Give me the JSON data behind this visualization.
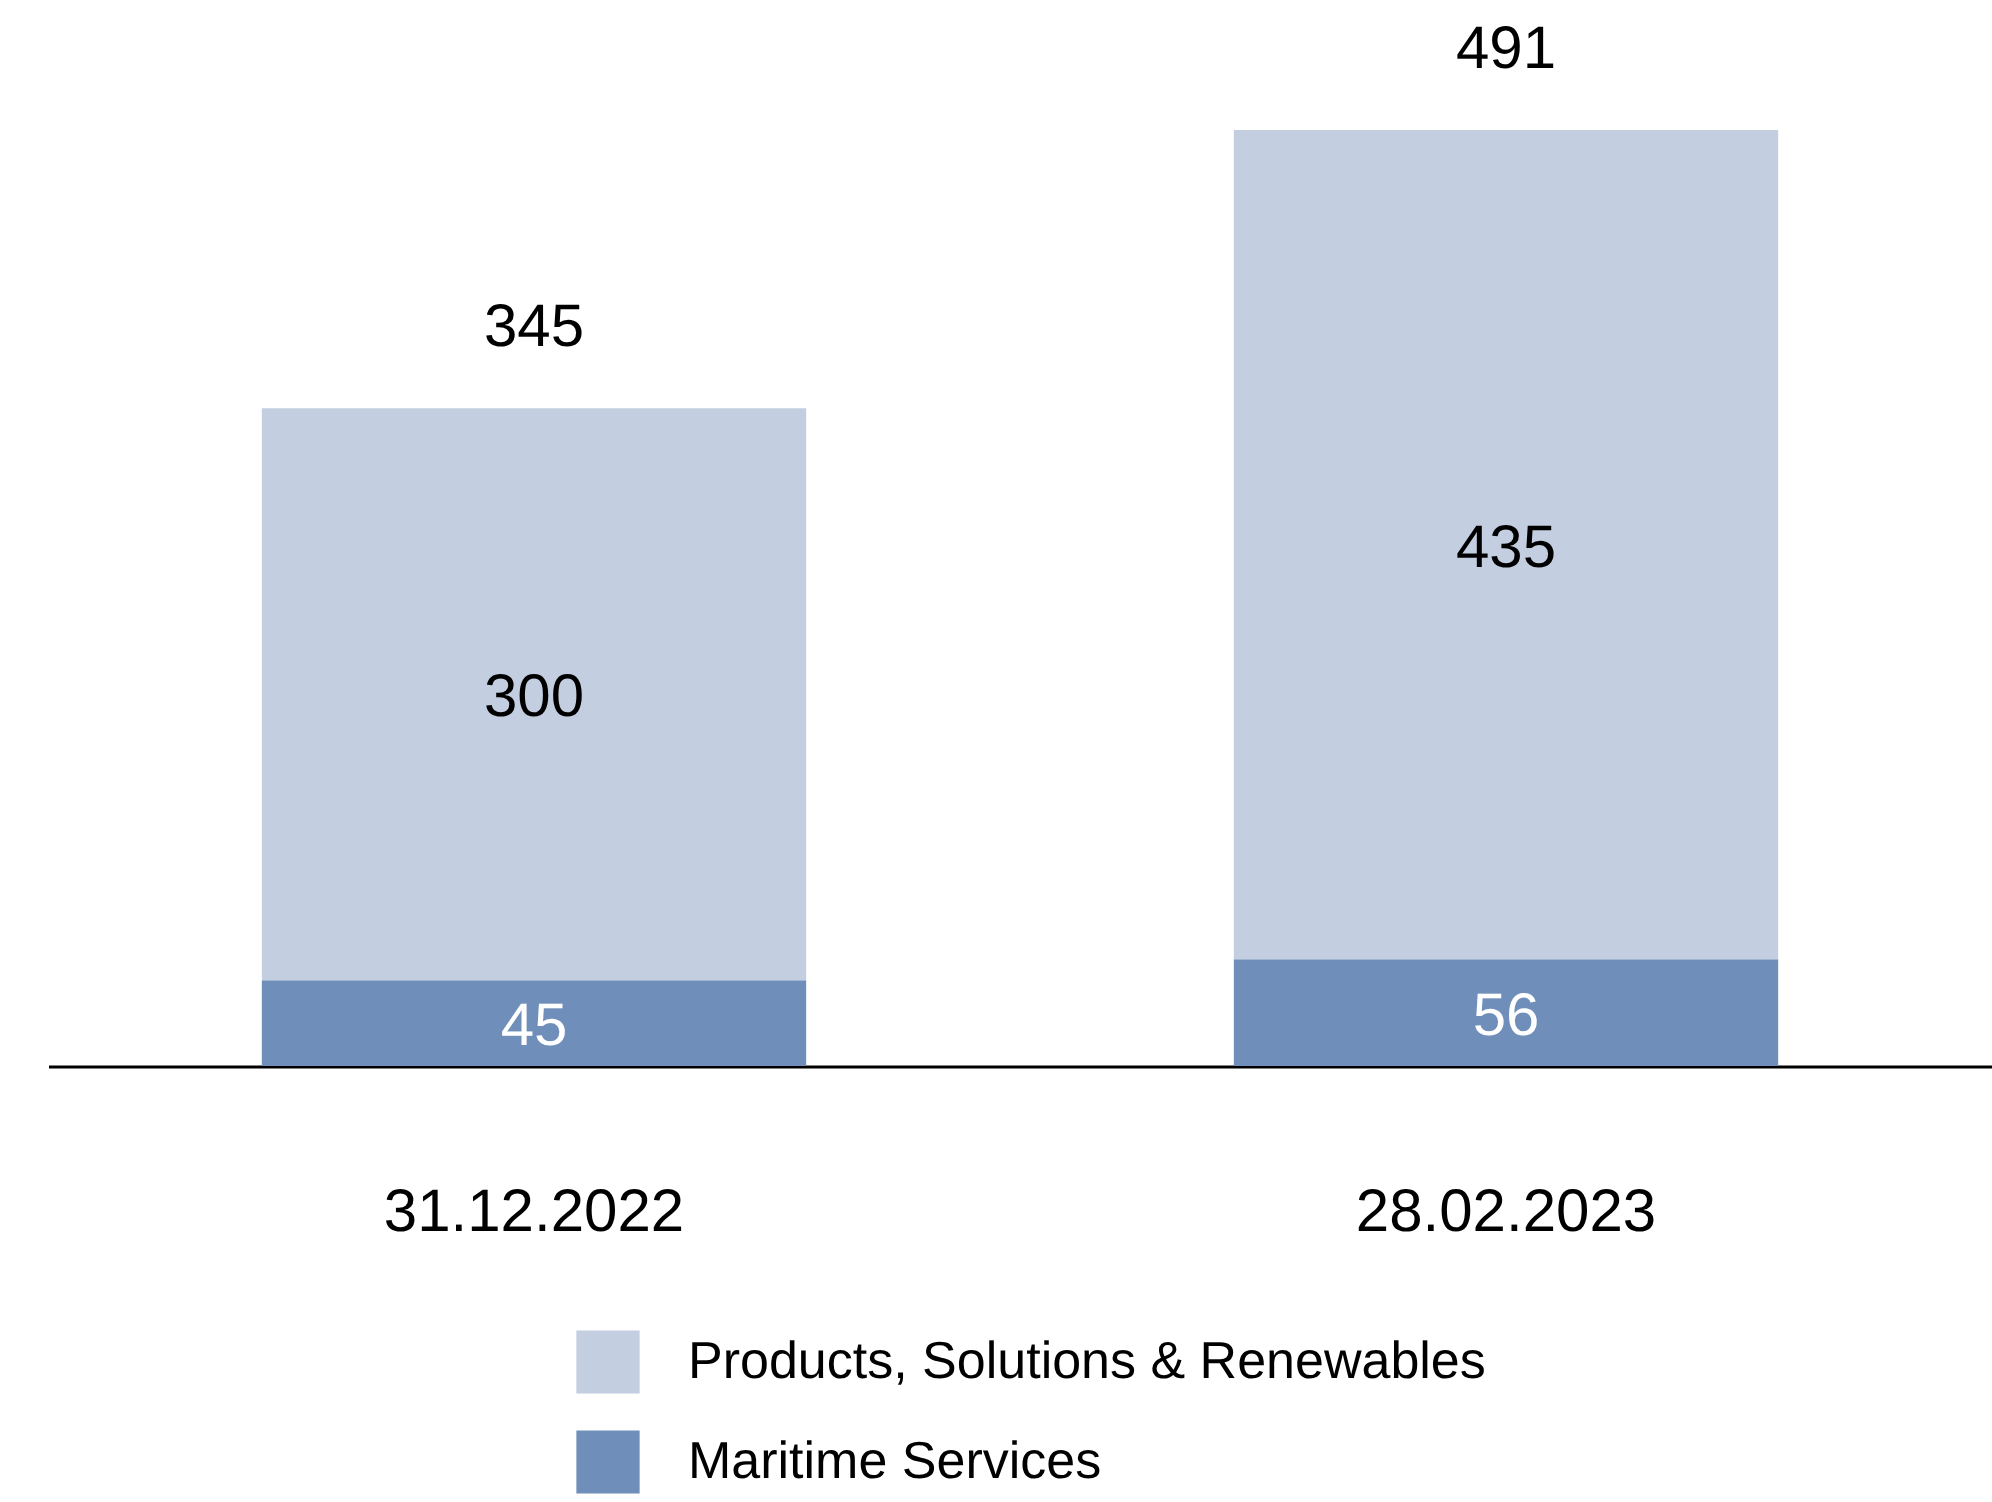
{
  "chart_data": {
    "type": "bar",
    "stacked": true,
    "categories": [
      "31.12.2022",
      "28.02.2023"
    ],
    "series": [
      {
        "name": "Maritime Services",
        "color": "#6f8fba",
        "values": [
          45,
          56
        ]
      },
      {
        "name": "Products, Solutions & Renewables",
        "color": "#c3cee0",
        "values": [
          300,
          435
        ]
      }
    ],
    "data_labels": true,
    "totals": [
      "345",
      "491"
    ],
    "legend": "bottom"
  }
}
